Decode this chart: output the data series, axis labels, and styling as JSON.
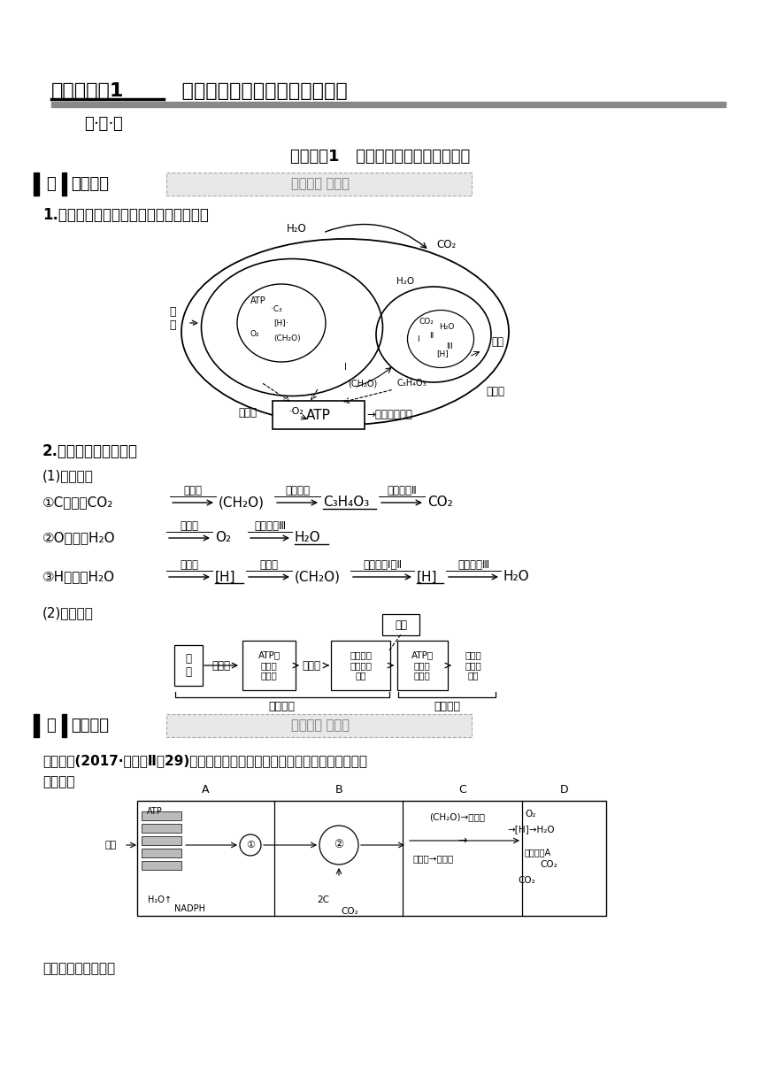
{
  "bg_color": "#ffffff",
  "title_prefix": "考点加强课1",
  "title_main": "  光合作用与呼吸作用的综合分析",
  "subtitle": "展·探·练",
  "section1_title": "重点题型1   光合作用和细胞呼吸的关系",
  "zhan_label": "展",
  "gui_label": "规律方法",
  "jifa_text": "技法必备 巧攻关",
  "item1": "1.图解法理解光合作用与细胞呼吸的联系",
  "item2": "2.流程法理清两个联系",
  "item2a": "(1)物质联系",
  "item2c": "(2)能量联系",
  "tan_label": "探",
  "gaokao_label": "高考真题",
  "gaokao_text": "探究高考 明考向",
  "example_text": "【例证】(2017·全国卷Ⅱ，29)下图是表示某植物叶肉细胞光合作用和呼吸作用的",
  "example_text2": "示意图。",
  "example_text3": "据图回答下列问题："
}
